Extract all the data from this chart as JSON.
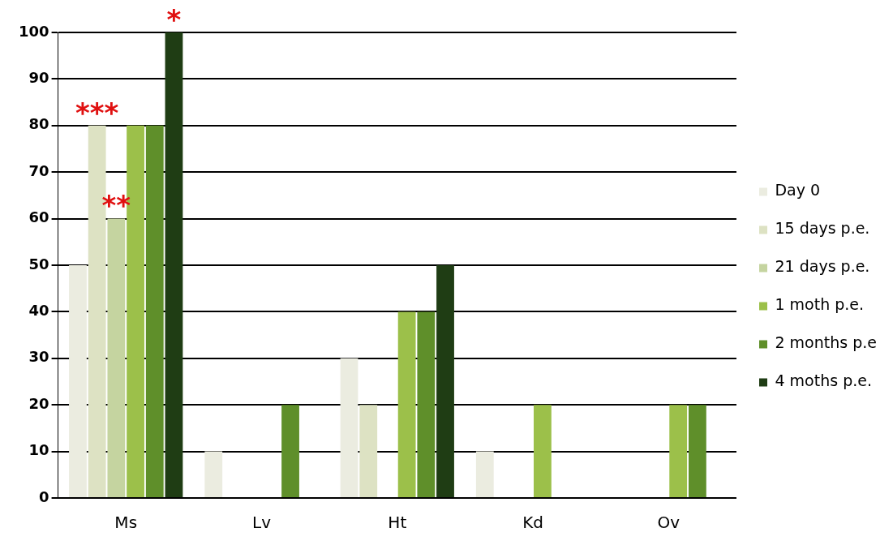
{
  "chart_data": {
    "type": "bar",
    "categories": [
      "Ms",
      "Lv",
      "Ht",
      "Kd",
      "Ov"
    ],
    "series": [
      {
        "name": "Day 0",
        "color": "#ebece0",
        "values": [
          50,
          10,
          30,
          10,
          0
        ]
      },
      {
        "name": "15 days p.e.",
        "color": "#dde2c3",
        "values": [
          80,
          0,
          20,
          0,
          0
        ]
      },
      {
        "name": "21 days p.e.",
        "color": "#c5d4a0",
        "values": [
          60,
          0,
          0,
          0,
          0
        ]
      },
      {
        "name": "1 moth p.e.",
        "color": "#9cc04a",
        "values": [
          80,
          0,
          40,
          20,
          20
        ]
      },
      {
        "name": "2 months p.e",
        "color": "#5f8f2a",
        "values": [
          80,
          20,
          40,
          0,
          20
        ]
      },
      {
        "name": "4 moths p.e.",
        "color": "#1f3d14",
        "values": [
          100,
          0,
          50,
          0,
          0
        ]
      }
    ],
    "ylim": [
      0,
      100
    ],
    "yticks": [
      0,
      10,
      20,
      30,
      40,
      50,
      60,
      70,
      80,
      90,
      100
    ],
    "grid": "y",
    "legend": "right",
    "annotations": [
      {
        "text": "***",
        "x": "Ms",
        "y": 80
      },
      {
        "text": "**",
        "x": "Ms",
        "y": 60
      },
      "*"
    ]
  }
}
